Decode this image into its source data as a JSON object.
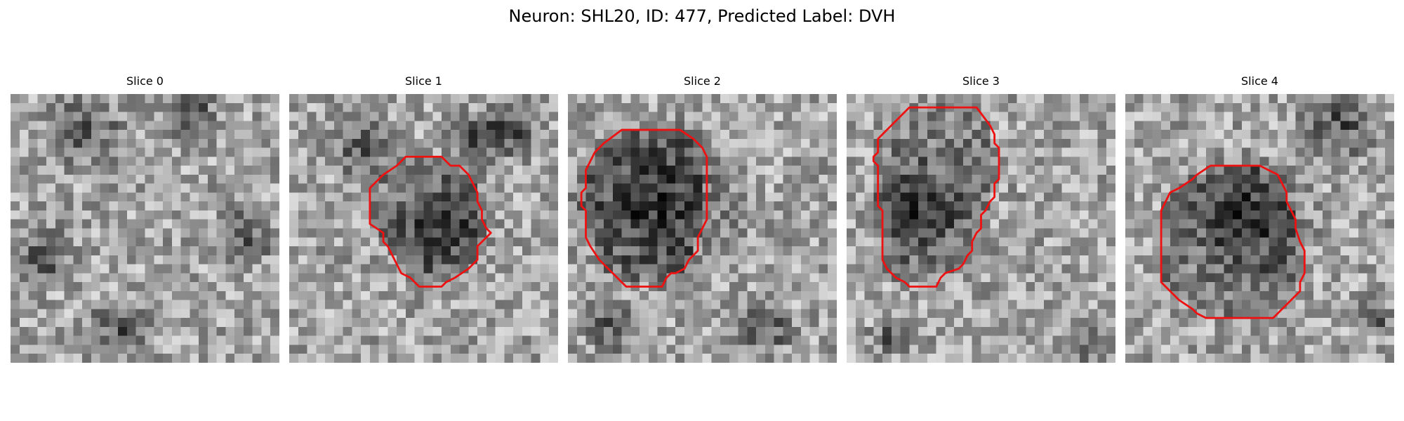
{
  "figure": {
    "title": "Neuron: SHL20, ID: 477, Predicted Label: DVH"
  },
  "panels": [
    {
      "title": "Slice 0",
      "contour": []
    },
    {
      "title": "Slice 1",
      "contour": [
        [
          14.5,
          7.0
        ],
        [
          17.0,
          7.0
        ],
        [
          18.0,
          8.0
        ],
        [
          19.0,
          8.0
        ],
        [
          20.0,
          9.0
        ],
        [
          20.5,
          10.0
        ],
        [
          21.0,
          11.0
        ],
        [
          21.0,
          12.0
        ],
        [
          21.5,
          13.0
        ],
        [
          21.5,
          14.0
        ],
        [
          22.0,
          15.0
        ],
        [
          22.5,
          15.5
        ],
        [
          22.0,
          16.0
        ],
        [
          21.5,
          16.5
        ],
        [
          21.0,
          17.0
        ],
        [
          21.0,
          18.5
        ],
        [
          20.0,
          19.5
        ],
        [
          18.5,
          20.5
        ],
        [
          17.5,
          21.0
        ],
        [
          17.0,
          21.5
        ],
        [
          14.5,
          21.5
        ],
        [
          13.5,
          20.5
        ],
        [
          12.5,
          20.0
        ],
        [
          12.0,
          19.0
        ],
        [
          11.5,
          18.0
        ],
        [
          11.0,
          17.0
        ],
        [
          10.5,
          16.5
        ],
        [
          10.5,
          15.5
        ],
        [
          9.0,
          14.5
        ],
        [
          9.0,
          10.5
        ],
        [
          10.5,
          9.0
        ],
        [
          12.0,
          8.0
        ],
        [
          13.0,
          7.0
        ]
      ]
    },
    {
      "title": "Slice 2",
      "contour": [
        [
          8.0,
          4.0
        ],
        [
          12.5,
          4.0
        ],
        [
          14.0,
          5.0
        ],
        [
          15.0,
          6.0
        ],
        [
          15.5,
          7.0
        ],
        [
          15.5,
          14.0
        ],
        [
          15.0,
          15.0
        ],
        [
          14.5,
          16.0
        ],
        [
          14.5,
          17.5
        ],
        [
          14.0,
          18.0
        ],
        [
          13.5,
          18.5
        ],
        [
          13.0,
          19.5
        ],
        [
          12.0,
          20.0
        ],
        [
          11.5,
          20.0
        ],
        [
          11.0,
          20.5
        ],
        [
          10.5,
          21.5
        ],
        [
          9.0,
          21.5
        ],
        [
          8.5,
          21.5
        ],
        [
          6.5,
          21.5
        ],
        [
          5.5,
          20.5
        ],
        [
          4.5,
          19.5
        ],
        [
          3.5,
          18.5
        ],
        [
          2.5,
          17.0
        ],
        [
          2.0,
          16.0
        ],
        [
          2.0,
          13.0
        ],
        [
          1.5,
          12.5
        ],
        [
          1.5,
          11.0
        ],
        [
          2.0,
          10.5
        ],
        [
          2.0,
          8.5
        ],
        [
          2.5,
          7.5
        ],
        [
          3.0,
          6.5
        ],
        [
          4.0,
          5.5
        ],
        [
          6.0,
          4.0
        ]
      ]
    },
    {
      "title": "Slice 3",
      "contour": [
        [
          10.0,
          1.5
        ],
        [
          14.5,
          1.5
        ],
        [
          16.0,
          3.5
        ],
        [
          16.5,
          4.5
        ],
        [
          16.5,
          5.5
        ],
        [
          17.0,
          6.0
        ],
        [
          17.0,
          9.5
        ],
        [
          16.5,
          10.0
        ],
        [
          16.5,
          11.5
        ],
        [
          16.0,
          12.0
        ],
        [
          15.5,
          13.0
        ],
        [
          15.0,
          13.5
        ],
        [
          15.0,
          15.0
        ],
        [
          14.5,
          15.5
        ],
        [
          14.0,
          16.5
        ],
        [
          14.0,
          17.5
        ],
        [
          13.5,
          18.0
        ],
        [
          13.0,
          19.0
        ],
        [
          12.5,
          19.5
        ],
        [
          11.0,
          20.0
        ],
        [
          10.5,
          20.5
        ],
        [
          10.0,
          21.5
        ],
        [
          8.5,
          21.5
        ],
        [
          7.0,
          21.5
        ],
        [
          6.5,
          21.0
        ],
        [
          5.5,
          20.5
        ],
        [
          4.5,
          19.5
        ],
        [
          4.0,
          18.5
        ],
        [
          4.0,
          13.0
        ],
        [
          3.5,
          12.5
        ],
        [
          3.5,
          8.0
        ],
        [
          3.0,
          7.5
        ],
        [
          3.0,
          7.0
        ],
        [
          3.5,
          6.5
        ],
        [
          3.5,
          5.0
        ],
        [
          4.0,
          4.5
        ],
        [
          5.0,
          3.5
        ],
        [
          7.0,
          1.5
        ]
      ]
    },
    {
      "title": "Slice 4",
      "contour": [
        [
          12.0,
          8.0
        ],
        [
          15.0,
          8.0
        ],
        [
          16.0,
          8.5
        ],
        [
          17.0,
          9.0
        ],
        [
          17.5,
          10.0
        ],
        [
          18.0,
          11.0
        ],
        [
          18.0,
          12.0
        ],
        [
          18.5,
          13.0
        ],
        [
          19.0,
          14.0
        ],
        [
          19.0,
          15.0
        ],
        [
          19.5,
          16.5
        ],
        [
          20.0,
          17.5
        ],
        [
          20.0,
          20.0
        ],
        [
          19.5,
          21.0
        ],
        [
          19.5,
          22.0
        ],
        [
          19.0,
          22.5
        ],
        [
          18.5,
          23.0
        ],
        [
          18.0,
          23.5
        ],
        [
          17.5,
          24.0
        ],
        [
          17.0,
          24.5
        ],
        [
          16.5,
          25.0
        ],
        [
          13.5,
          25.0
        ],
        [
          12.0,
          25.0
        ],
        [
          9.0,
          25.0
        ],
        [
          8.0,
          24.5
        ],
        [
          7.5,
          24.0
        ],
        [
          6.0,
          23.0
        ],
        [
          5.0,
          22.0
        ],
        [
          4.0,
          21.0
        ],
        [
          4.0,
          13.0
        ],
        [
          4.5,
          12.0
        ],
        [
          5.0,
          11.0
        ],
        [
          6.0,
          10.5
        ],
        [
          7.5,
          9.5
        ],
        [
          8.0,
          9.0
        ],
        [
          9.5,
          8.0
        ],
        [
          10.0,
          8.0
        ]
      ]
    }
  ],
  "colors": {
    "contour": "#ee1111"
  }
}
